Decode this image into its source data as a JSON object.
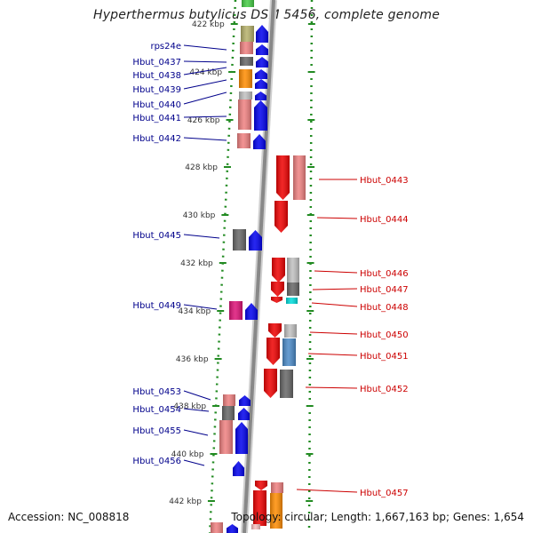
{
  "title": "Hyperthermus butylicus DSM 5456, complete genome",
  "footer": {
    "accession": "Accession: NC_008818",
    "summary": "Topology: circular; Length: 1,667,163 bp; Genes: 1,654"
  },
  "colors": {
    "label_left": "#00008b",
    "label_right": "#cc0000",
    "tick": "#228b22",
    "backbone": "#888888"
  },
  "ticks": [
    {
      "label": "422 kbp"
    },
    {
      "label": "424 kbp"
    },
    {
      "label": "426 kbp"
    },
    {
      "label": "428 kbp"
    },
    {
      "label": "430 kbp"
    },
    {
      "label": "432 kbp"
    },
    {
      "label": "434 kbp"
    },
    {
      "label": "436 kbp"
    },
    {
      "label": "438 kbp"
    },
    {
      "label": "440 kbp"
    },
    {
      "label": "442 kbp"
    }
  ],
  "genes_left": [
    {
      "name": "rps24e"
    },
    {
      "name": "Hbut_0437"
    },
    {
      "name": "Hbut_0438"
    },
    {
      "name": "Hbut_0439"
    },
    {
      "name": "Hbut_0440"
    },
    {
      "name": "Hbut_0441"
    },
    {
      "name": "Hbut_0442"
    },
    {
      "name": "Hbut_0445"
    },
    {
      "name": "Hbut_0449"
    },
    {
      "name": "Hbut_0453"
    },
    {
      "name": "Hbut_0454"
    },
    {
      "name": "Hbut_0455"
    },
    {
      "name": "Hbut_0456"
    }
  ],
  "genes_right": [
    {
      "name": "Hbut_0443"
    },
    {
      "name": "Hbut_0444"
    },
    {
      "name": "Hbut_0446"
    },
    {
      "name": "Hbut_0447"
    },
    {
      "name": "Hbut_0448"
    },
    {
      "name": "Hbut_0450"
    },
    {
      "name": "Hbut_0451"
    },
    {
      "name": "Hbut_0452"
    },
    {
      "name": "Hbut_0457"
    }
  ]
}
